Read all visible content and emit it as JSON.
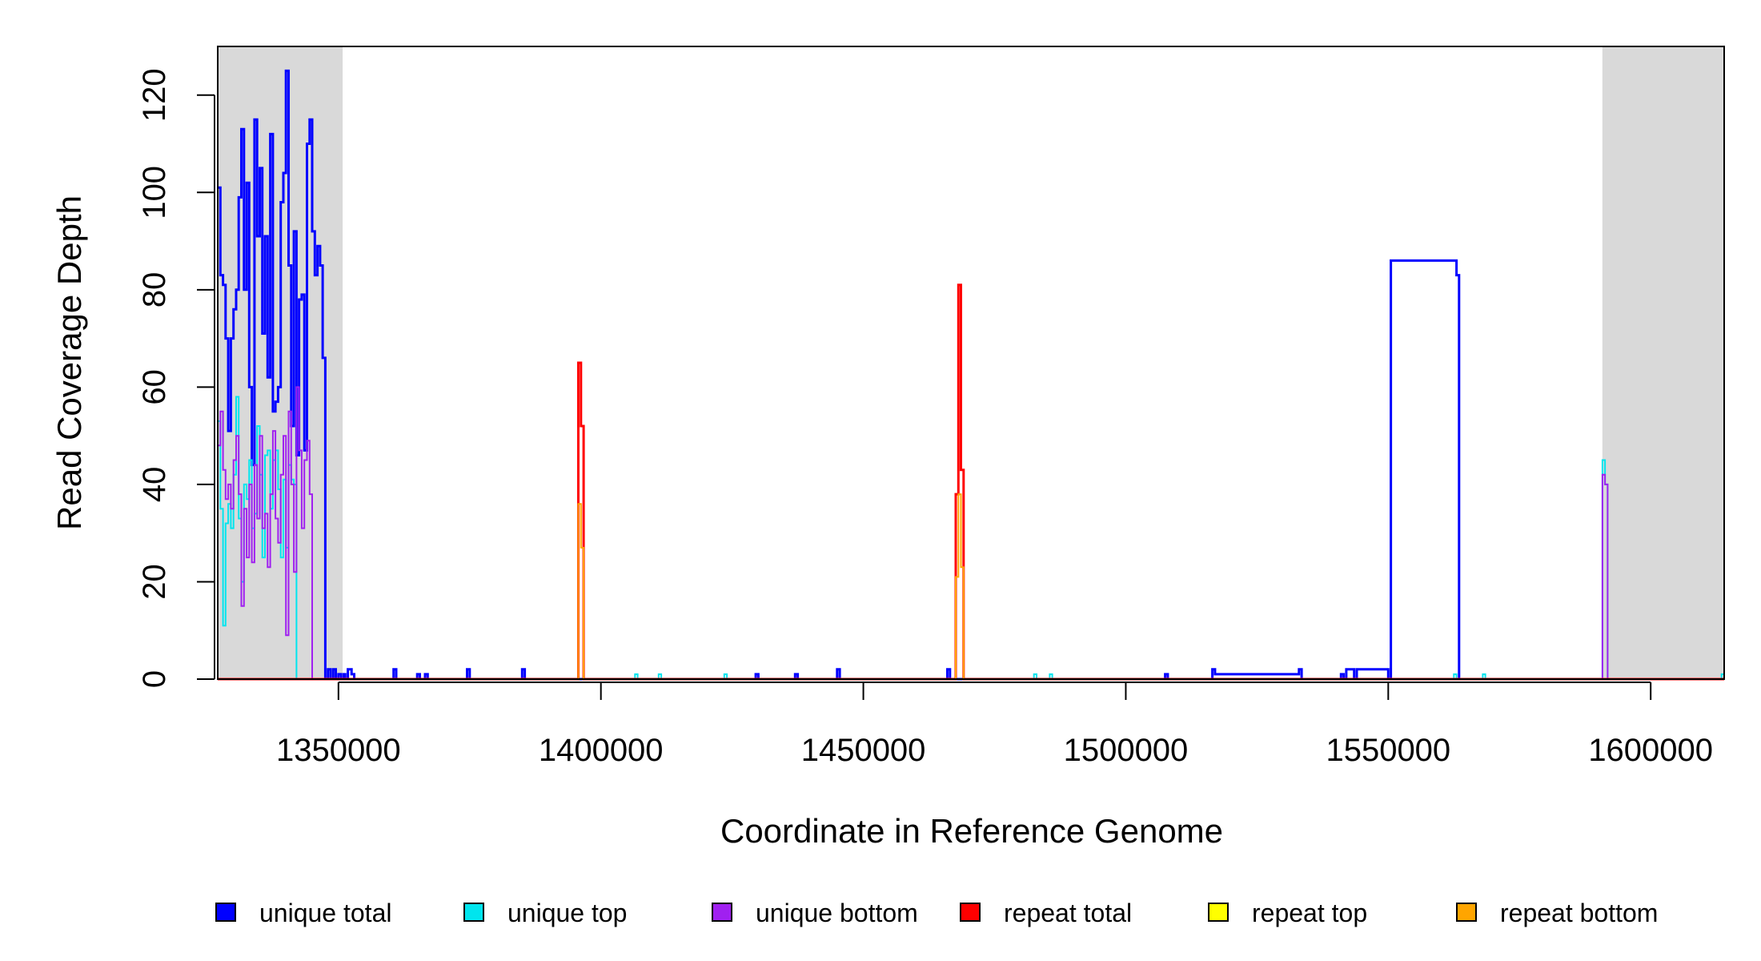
{
  "chart_data": {
    "type": "line",
    "title": "",
    "xlabel": "Coordinate in Reference Genome",
    "ylabel": "Read Coverage Depth",
    "xlim": [
      1327000,
      1614000
    ],
    "ylim": [
      0,
      130
    ],
    "x_ticks": [
      1350000,
      1400000,
      1450000,
      1500000,
      1550000,
      1600000
    ],
    "y_ticks": [
      0,
      20,
      40,
      60,
      80,
      100,
      120
    ],
    "grid": false,
    "shaded_regions": [
      {
        "from": 1327000,
        "to": 1350800,
        "color": "#d9d9d9"
      },
      {
        "from": 1590800,
        "to": 1614000,
        "color": "#d9d9d9"
      }
    ],
    "legend": {
      "placement": "bottom",
      "items": [
        {
          "label": "unique total",
          "color": "#0000ff"
        },
        {
          "label": "unique top",
          "color": "#00e5ee"
        },
        {
          "label": "unique bottom",
          "color": "#a020f0"
        },
        {
          "label": "repeat total",
          "color": "#ff0000"
        },
        {
          "label": "repeat top",
          "color": "#ffff00"
        },
        {
          "label": "repeat bottom",
          "color": "#ffa500"
        }
      ]
    },
    "series": [
      {
        "key": "unique_total",
        "color": "#0000ff",
        "x": [
          1327000,
          1327500,
          1328000,
          1328500,
          1329000,
          1329500,
          1330000,
          1330500,
          1331000,
          1331500,
          1332000,
          1332500,
          1333000,
          1333500,
          1334000,
          1334500,
          1335000,
          1335500,
          1336000,
          1336500,
          1337000,
          1337500,
          1338000,
          1338500,
          1339000,
          1339500,
          1340000,
          1340500,
          1341000,
          1341500,
          1342000,
          1342500,
          1343000,
          1343500,
          1344000,
          1344500,
          1345000,
          1345500,
          1346000,
          1346500,
          1347000,
          1347500,
          1348000,
          1348500,
          1349000,
          1349500,
          1350000,
          1350500,
          1351000,
          1351300,
          1351800,
          1352500,
          1353000,
          1360500,
          1361000,
          1365000,
          1365500,
          1366500,
          1367000,
          1374500,
          1375000,
          1385000,
          1385500,
          1429500,
          1430000,
          1437000,
          1437500,
          1445000,
          1445500,
          1466000,
          1466500,
          1507500,
          1508000,
          1516500,
          1517000,
          1533000,
          1533500,
          1541000,
          1541500,
          1542000,
          1543500,
          1544000,
          1550000,
          1550500,
          1563000,
          1563500,
          1570000,
          1570500,
          1590500,
          1590800,
          1591300,
          1591800,
          1592300,
          1614000
        ],
        "y": [
          101,
          83,
          81,
          70,
          51,
          70,
          76,
          80,
          99,
          113,
          80,
          102,
          60,
          44,
          115,
          91,
          105,
          71,
          91,
          62,
          112,
          55,
          57,
          60,
          98,
          104,
          125,
          85,
          52,
          92,
          46,
          78,
          79,
          47,
          110,
          115,
          92,
          83,
          89,
          85,
          66,
          0,
          2,
          0,
          2,
          0,
          1,
          0,
          1,
          0,
          2,
          1,
          0,
          2,
          0,
          1,
          0,
          1,
          0,
          2,
          0,
          2,
          0,
          1,
          0,
          1,
          0,
          2,
          0,
          2,
          0,
          1,
          0,
          2,
          1,
          2,
          0,
          1,
          0,
          2,
          0,
          2,
          0,
          86,
          83,
          0,
          0,
          0,
          0,
          0,
          0,
          0,
          0,
          0
        ],
        "stroke": 3
      },
      {
        "key": "unique_top",
        "color": "#00e5ee",
        "x": [
          1327000,
          1327500,
          1328000,
          1328500,
          1329000,
          1329500,
          1330000,
          1330500,
          1331000,
          1331500,
          1332000,
          1332500,
          1333000,
          1333500,
          1334000,
          1334500,
          1335000,
          1335500,
          1336000,
          1336500,
          1337000,
          1337500,
          1338000,
          1338500,
          1339000,
          1339500,
          1340000,
          1340500,
          1341000,
          1341500,
          1342000,
          1342500,
          1343000,
          1343500,
          1344000,
          1344500,
          1345000,
          1345500,
          1346000,
          1346500,
          1347000,
          1347500,
          1348000,
          1348500,
          1349000,
          1349500,
          1350000,
          1350500,
          1351000,
          1351300,
          1406500,
          1407000,
          1411000,
          1411500,
          1423500,
          1424000,
          1482500,
          1483000,
          1485500,
          1486000,
          1562500,
          1563000,
          1568000,
          1568500,
          1590800,
          1591300,
          1591800,
          1613000,
          1613500,
          1614000
        ],
        "y": [
          53,
          35,
          11,
          32,
          36,
          31,
          42,
          58,
          33,
          20,
          40,
          37,
          45,
          31,
          34,
          52,
          42,
          25,
          46,
          47,
          35,
          45,
          47,
          39,
          25,
          41,
          27,
          44,
          41,
          40,
          0,
          0,
          0,
          0,
          0,
          0,
          0,
          0,
          0,
          0,
          0,
          0,
          0,
          0,
          0,
          0,
          0,
          0,
          0,
          0,
          1,
          0,
          1,
          0,
          1,
          0,
          1,
          0,
          1,
          0,
          1,
          0,
          1,
          0,
          45,
          40,
          0,
          0,
          1,
          0
        ],
        "stroke": 2
      },
      {
        "key": "unique_bottom",
        "color": "#a020f0",
        "x": [
          1327000,
          1327500,
          1328000,
          1328500,
          1329000,
          1329500,
          1330000,
          1330500,
          1331000,
          1331500,
          1332000,
          1332500,
          1333000,
          1333500,
          1334000,
          1334500,
          1335000,
          1335500,
          1336000,
          1336500,
          1337000,
          1337500,
          1338000,
          1338500,
          1339000,
          1339500,
          1340000,
          1340500,
          1341000,
          1341500,
          1342000,
          1342500,
          1343000,
          1343500,
          1344000,
          1344500,
          1345000,
          1345500,
          1346000,
          1346500,
          1347000,
          1347500,
          1348000,
          1348500,
          1349000,
          1349500,
          1350000,
          1350500,
          1351000,
          1351300,
          1590800,
          1591300,
          1591800
        ],
        "y": [
          48,
          55,
          43,
          37,
          40,
          35,
          45,
          50,
          38,
          15,
          35,
          25,
          40,
          24,
          44,
          33,
          50,
          31,
          34,
          23,
          38,
          51,
          33,
          28,
          42,
          50,
          9,
          55,
          40,
          22,
          60,
          47,
          31,
          45,
          49,
          38,
          0,
          0,
          0,
          0,
          0,
          0,
          0,
          0,
          0,
          0,
          0,
          0,
          0,
          0,
          42,
          40,
          0
        ],
        "stroke": 2
      },
      {
        "key": "repeat_total",
        "color": "#ff0000",
        "x": [
          1327000,
          1395700,
          1396200,
          1396700,
          1397200,
          1467600,
          1468100,
          1468600,
          1469100,
          1469600,
          1614000
        ],
        "y": [
          0,
          65,
          52,
          0,
          0,
          38,
          81,
          43,
          0,
          0,
          0
        ],
        "stroke": 3
      },
      {
        "key": "repeat_top",
        "color": "#ffff00",
        "x": [
          1327000,
          1614000
        ],
        "y": [
          0,
          0
        ],
        "stroke": 2
      },
      {
        "key": "repeat_bottom",
        "color": "#ffa500",
        "x": [
          1327000,
          1395700,
          1396200,
          1396700,
          1397200,
          1467600,
          1468100,
          1468600,
          1469100,
          1469600,
          1614000
        ],
        "y": [
          0,
          36,
          27,
          0,
          0,
          21,
          38,
          23,
          0,
          0,
          0
        ],
        "stroke": 2
      }
    ]
  }
}
